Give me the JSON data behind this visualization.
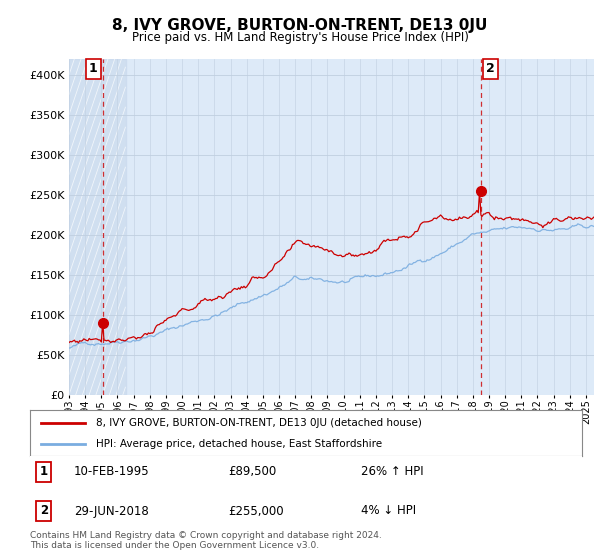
{
  "title": "8, IVY GROVE, BURTON-ON-TRENT, DE13 0JU",
  "subtitle": "Price paid vs. HM Land Registry's House Price Index (HPI)",
  "ylim": [
    0,
    420000
  ],
  "xlim_start": 1993.0,
  "xlim_end": 2025.5,
  "sale1_year": 1995.11,
  "sale1_price": 89500,
  "sale2_year": 2018.49,
  "sale2_price": 255000,
  "legend_line1": "8, IVY GROVE, BURTON-ON-TRENT, DE13 0JU (detached house)",
  "legend_line2": "HPI: Average price, detached house, East Staffordshire",
  "ann1_date": "10-FEB-1995",
  "ann1_price": "£89,500",
  "ann1_hpi": "26% ↑ HPI",
  "ann2_date": "29-JUN-2018",
  "ann2_price": "£255,000",
  "ann2_hpi": "4% ↓ HPI",
  "footer": "Contains HM Land Registry data © Crown copyright and database right 2024.\nThis data is licensed under the Open Government Licence v3.0.",
  "hpi_color": "#7aade0",
  "price_color": "#cc0000",
  "dashed_color": "#cc0000",
  "bg_chart": "#ddeaf8",
  "bg_fig": "#ffffff",
  "grid_color": "#c0cfe0"
}
